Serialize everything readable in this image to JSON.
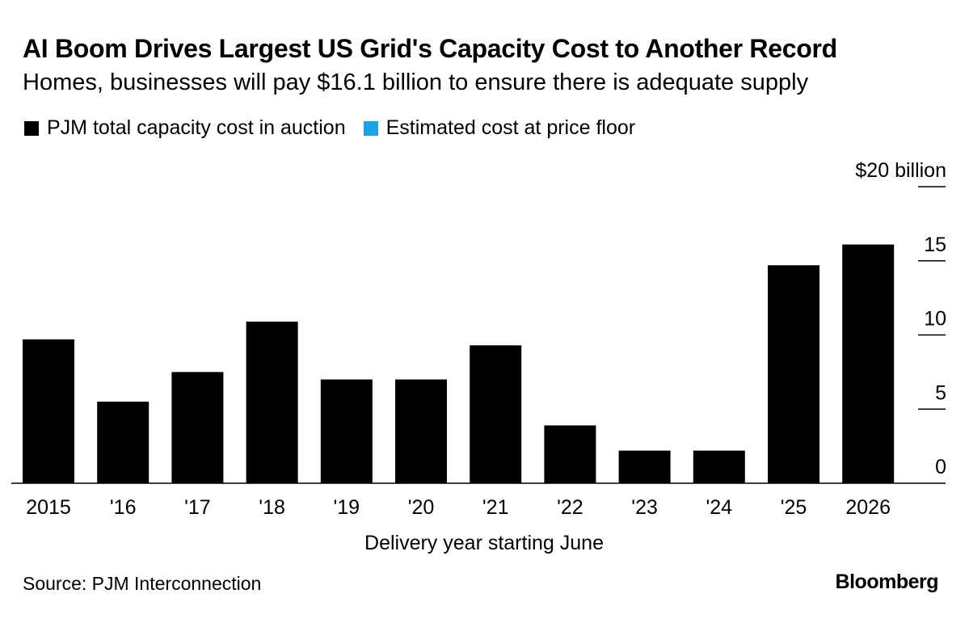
{
  "chart_data": {
    "type": "bar",
    "title": "AI Boom Drives Largest US Grid's Capacity Cost to Another Record",
    "subtitle": "Homes, businesses will pay $16.1 billion to ensure there is adequate supply",
    "legend": [
      {
        "label": "PJM total capacity cost in auction",
        "color": "#000000"
      },
      {
        "label": "Estimated cost at price floor",
        "color": "#1ba3e8"
      }
    ],
    "legend_placement": "top-left",
    "categories": [
      "2015",
      "'16",
      "'17",
      "'18",
      "'19",
      "'20",
      "'21",
      "'22",
      "'23",
      "'24",
      "'25",
      "2026"
    ],
    "series": [
      {
        "name": "PJM total capacity cost in auction",
        "values": [
          9.7,
          5.5,
          7.5,
          10.9,
          7.0,
          7.0,
          9.3,
          3.9,
          2.2,
          2.2,
          14.7,
          16.1
        ]
      }
    ],
    "xlabel": "Delivery year starting June",
    "ylabel": "",
    "ylim": [
      0,
      20
    ],
    "yticks": [
      0,
      5,
      10,
      15,
      20
    ],
    "ytick_labels": [
      "0",
      "5",
      "10",
      "15",
      "$20 billion"
    ],
    "y_axis_side": "right",
    "grid": false,
    "bar_color": "#000000"
  },
  "footer": {
    "source": "Source: PJM Interconnection",
    "logo": "Bloomberg"
  }
}
